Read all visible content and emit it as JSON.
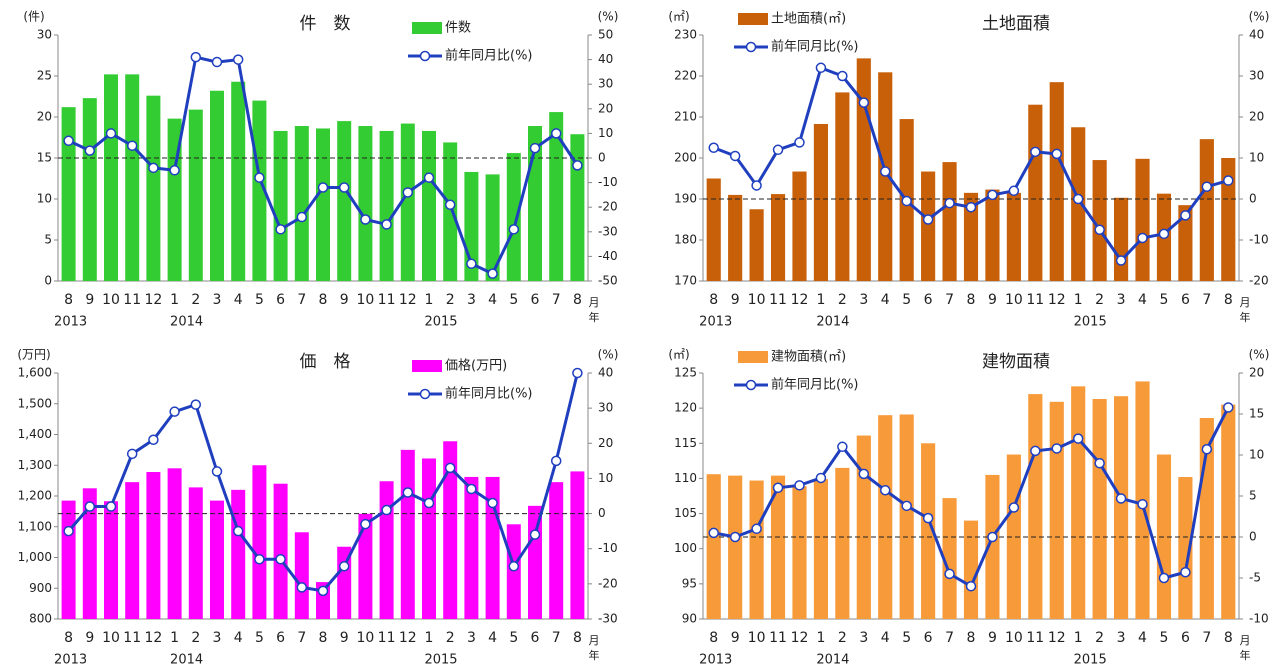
{
  "chart_data": [
    {
      "type": "bar-line",
      "title": "件　数",
      "y_unit": "(件)",
      "y2_unit": "(%)",
      "x_unit_month": "月",
      "x_unit_year": "年",
      "legend": "top-center",
      "categories": [
        "8",
        "9",
        "10",
        "11",
        "12",
        "1",
        "2",
        "3",
        "4",
        "5",
        "6",
        "7",
        "8",
        "9",
        "10",
        "11",
        "12",
        "1",
        "2",
        "3",
        "4",
        "5",
        "6",
        "7",
        "8"
      ],
      "x_groups": [
        "2013",
        null,
        null,
        null,
        null,
        "2014",
        null,
        null,
        null,
        null,
        null,
        null,
        null,
        null,
        null,
        null,
        null,
        "2015",
        null,
        null,
        null,
        null,
        null,
        null,
        null
      ],
      "series": [
        {
          "name": "件数",
          "color": "#33cc33",
          "values": [
            21.2,
            22.3,
            25.2,
            25.2,
            22.6,
            19.8,
            20.9,
            23.2,
            24.3,
            22.0,
            18.3,
            18.9,
            18.6,
            19.5,
            18.9,
            18.3,
            19.2,
            18.3,
            16.9,
            13.3,
            13.0,
            15.6,
            18.9,
            20.6,
            17.9
          ]
        },
        {
          "name": "前年同月比(%)",
          "color": "#1f3fbf",
          "axis": "y2",
          "values": [
            7,
            3,
            10,
            5,
            -4,
            -5,
            41,
            39,
            40,
            -8,
            -29,
            -24,
            -12,
            -12,
            -25,
            -27,
            -14,
            -8,
            -19,
            -43,
            -47,
            -29,
            4,
            10,
            -3
          ]
        }
      ],
      "ylim": [
        0,
        30
      ],
      "yticks": [
        0,
        5,
        10,
        15,
        20,
        25,
        30
      ],
      "y2lim": [
        -50,
        50
      ],
      "y2ticks": [
        -50,
        -40,
        -30,
        -20,
        -10,
        0,
        10,
        20,
        30,
        40,
        50
      ],
      "y2_reference": 0,
      "negative_tick_color": "#ff0000"
    },
    {
      "type": "bar-line",
      "title": "土地面積",
      "y_unit": "(㎡)",
      "y2_unit": "(%)",
      "x_unit_month": "月",
      "x_unit_year": "年",
      "legend": "top-left",
      "categories": [
        "8",
        "9",
        "10",
        "11",
        "12",
        "1",
        "2",
        "3",
        "4",
        "5",
        "6",
        "7",
        "8",
        "9",
        "10",
        "11",
        "12",
        "1",
        "2",
        "3",
        "4",
        "5",
        "6",
        "7",
        "8"
      ],
      "x_groups": [
        "2013",
        null,
        null,
        null,
        null,
        "2014",
        null,
        null,
        null,
        null,
        null,
        null,
        null,
        null,
        null,
        null,
        null,
        "2015",
        null,
        null,
        null,
        null,
        null,
        null,
        null
      ],
      "series": [
        {
          "name": "土地面積(㎡)",
          "color": "#c8600a",
          "values": [
            195,
            191,
            187.5,
            191.2,
            196.7,
            208.3,
            216,
            224.3,
            220.9,
            209.5,
            196.7,
            199,
            191.5,
            192.3,
            191.5,
            213,
            218.5,
            207.5,
            199.5,
            190.3,
            199.8,
            191.3,
            188.5,
            204.6,
            200
          ]
        },
        {
          "name": "前年同月比(%)",
          "color": "#1f3fbf",
          "axis": "y2",
          "values": [
            12.5,
            10.5,
            3.3,
            12,
            13.8,
            32,
            30,
            23.5,
            6.7,
            -0.5,
            -5,
            -1,
            -2,
            1,
            2,
            11.5,
            11,
            0,
            -7.5,
            -15,
            -9.5,
            -8.5,
            -4,
            3,
            4.5
          ]
        }
      ],
      "ylim": [
        170,
        230
      ],
      "yticks": [
        170,
        180,
        190,
        200,
        210,
        220,
        230
      ],
      "y2lim": [
        -20,
        40
      ],
      "y2ticks": [
        -20,
        -10,
        0,
        10,
        20,
        30,
        40
      ],
      "y2_reference": 0,
      "negative_tick_color": "#ff0000"
    },
    {
      "type": "bar-line",
      "title": "価　格",
      "y_unit": "(万円)",
      "y2_unit": "(%)",
      "x_unit_month": "月",
      "x_unit_year": "年",
      "legend": "top-center",
      "categories": [
        "8",
        "9",
        "10",
        "11",
        "12",
        "1",
        "2",
        "3",
        "4",
        "5",
        "6",
        "7",
        "8",
        "9",
        "10",
        "11",
        "12",
        "1",
        "2",
        "3",
        "4",
        "5",
        "6",
        "7",
        "8"
      ],
      "x_groups": [
        "2013",
        null,
        null,
        null,
        null,
        "2014",
        null,
        null,
        null,
        null,
        null,
        null,
        null,
        null,
        null,
        null,
        null,
        "2015",
        null,
        null,
        null,
        null,
        null,
        null,
        null
      ],
      "series": [
        {
          "name": "価格(万円)",
          "color": "#ff00ff",
          "values": [
            1185,
            1225,
            1183,
            1245,
            1278,
            1290,
            1228,
            1185,
            1220,
            1300,
            1240,
            1082,
            920,
            1035,
            1142,
            1248,
            1350,
            1322,
            1378,
            1262,
            1262,
            1108,
            1168,
            1245,
            1280
          ]
        },
        {
          "name": "前年同月比(%)",
          "color": "#1f3fbf",
          "axis": "y2",
          "values": [
            -5,
            2,
            2,
            17,
            21,
            29,
            31,
            12,
            -5,
            -13,
            -13,
            -21,
            -22,
            -15,
            -3,
            1,
            6,
            3,
            13,
            7,
            3,
            -15,
            -6,
            15,
            40
          ]
        }
      ],
      "ylim": [
        800,
        1600
      ],
      "yticks": [
        800,
        900,
        {
          "value": 1000,
          "label": "1,000"
        },
        {
          "value": 1100,
          "label": "1,100"
        },
        {
          "value": 1200,
          "label": "1,200"
        },
        {
          "value": 1300,
          "label": "1,300"
        },
        {
          "value": 1400,
          "label": "1,400"
        },
        {
          "value": 1500,
          "label": "1,500"
        },
        {
          "value": 1600,
          "label": "1,600"
        }
      ],
      "y2lim": [
        -30,
        40
      ],
      "y2ticks": [
        -30,
        -20,
        -10,
        0,
        10,
        20,
        30,
        40
      ],
      "y2_reference": 0,
      "negative_tick_color": "#ff0000"
    },
    {
      "type": "bar-line",
      "title": "建物面積",
      "y_unit": "(㎡)",
      "y2_unit": "(%)",
      "x_unit_month": "月",
      "x_unit_year": "年",
      "legend": "top-left",
      "categories": [
        "8",
        "9",
        "10",
        "11",
        "12",
        "1",
        "2",
        "3",
        "4",
        "5",
        "6",
        "7",
        "8",
        "9",
        "10",
        "11",
        "12",
        "1",
        "2",
        "3",
        "4",
        "5",
        "6",
        "7",
        "8"
      ],
      "x_groups": [
        "2013",
        null,
        null,
        null,
        null,
        "2014",
        null,
        null,
        null,
        null,
        null,
        null,
        null,
        null,
        null,
        null,
        null,
        "2015",
        null,
        null,
        null,
        null,
        null,
        null,
        null
      ],
      "series": [
        {
          "name": "建物面積(㎡)",
          "color": "#f79a3a",
          "values": [
            110.6,
            110.4,
            109.7,
            110.4,
            108.9,
            109.9,
            111.5,
            116.1,
            119,
            119.1,
            115,
            107.2,
            104,
            110.5,
            113.4,
            122,
            120.9,
            123.1,
            121.3,
            121.7,
            123.8,
            113.4,
            110.2,
            118.6,
            120.5
          ]
        },
        {
          "name": "前年同月比(%)",
          "color": "#1f3fbf",
          "axis": "y2",
          "values": [
            0.5,
            0,
            1,
            6,
            6.3,
            7.2,
            11,
            7.7,
            5.7,
            3.8,
            2.3,
            -4.5,
            -6,
            0,
            3.6,
            10.5,
            10.8,
            12,
            9,
            4.7,
            4,
            -5,
            -4.3,
            10.7,
            15.8
          ]
        }
      ],
      "ylim": [
        90,
        125
      ],
      "yticks": [
        90,
        95,
        100,
        105,
        110,
        115,
        120,
        125
      ],
      "y2lim": [
        -10,
        20
      ],
      "y2ticks": [
        -10,
        -5,
        0,
        5,
        10,
        15,
        20
      ],
      "y2_reference": 0,
      "negative_tick_color": "#ff0000"
    }
  ]
}
